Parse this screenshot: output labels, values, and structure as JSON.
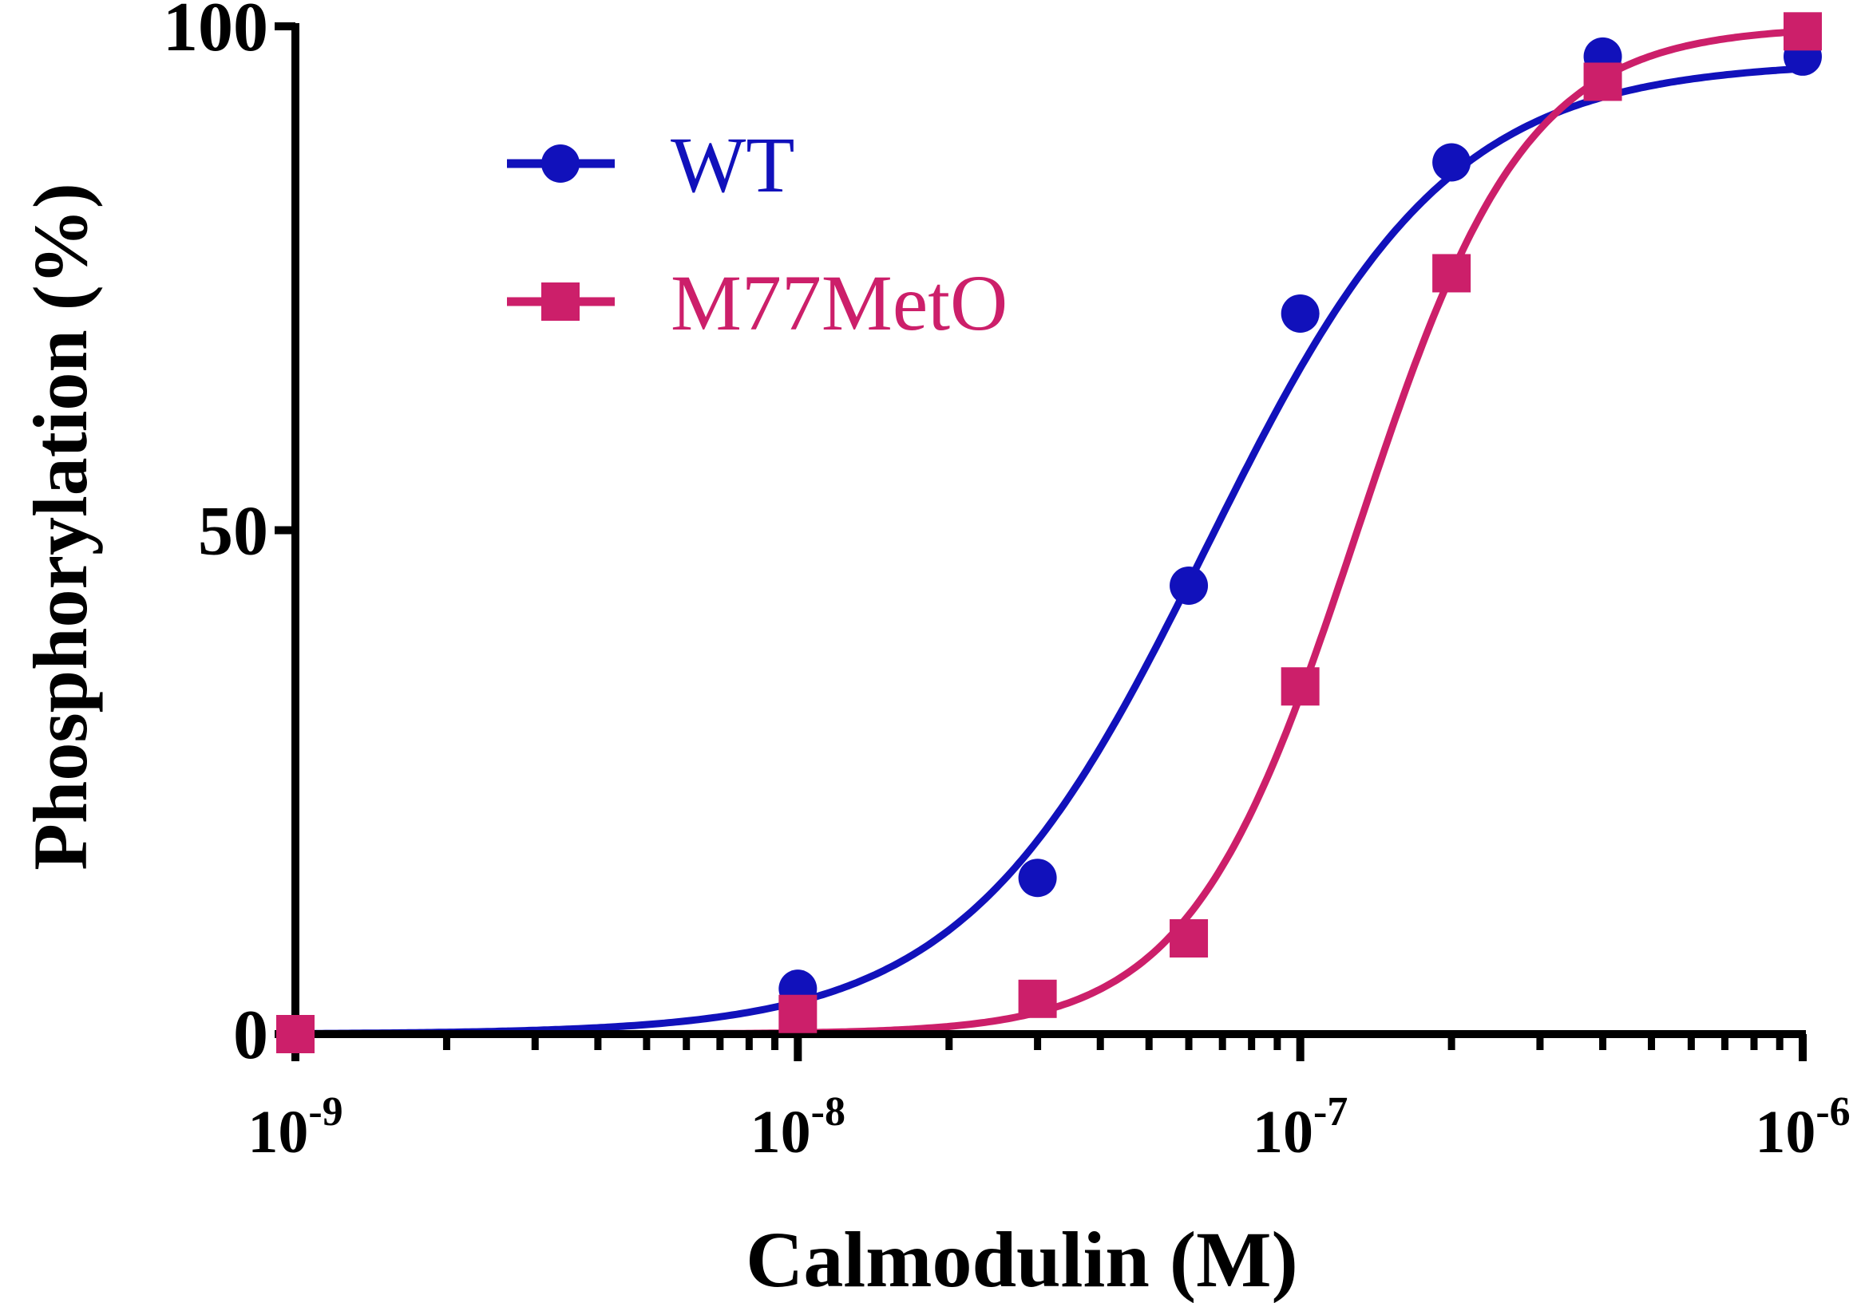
{
  "chart_data": {
    "type": "scatter",
    "xlabel": "Calmodulin (M)",
    "ylabel": "Phosphorylation (%)",
    "xscale": "log",
    "xlim": [
      1e-09,
      1e-06
    ],
    "ylim": [
      0,
      100
    ],
    "x_ticks": [
      {
        "value": 1e-09,
        "base": "10",
        "exp": "-9"
      },
      {
        "value": 1e-08,
        "base": "10",
        "exp": "-8"
      },
      {
        "value": 1e-07,
        "base": "10",
        "exp": "-7"
      },
      {
        "value": 1e-06,
        "base": "10",
        "exp": "-6"
      }
    ],
    "y_ticks": [
      {
        "value": 0,
        "label": "0"
      },
      {
        "value": 50,
        "label": "50"
      },
      {
        "value": 100,
        "label": "100"
      }
    ],
    "legend_position": "top-left",
    "grid": false,
    "series": [
      {
        "name": "WT",
        "color": "#1111bb",
        "marker": "circle",
        "x": [
          1e-09,
          1e-08,
          3e-08,
          6e-08,
          1e-07,
          2e-07,
          4e-07,
          1e-06
        ],
        "y": [
          0,
          4.5,
          15.5,
          44.5,
          71.5,
          86.5,
          97,
          97
        ],
        "fit": {
          "model": "sigmoidal dose-response",
          "bottom": 0,
          "top": 96.5,
          "ec50": 6.5e-08,
          "hill": 1.8
        }
      },
      {
        "name": "M77MetO",
        "color": "#cc1f6a",
        "marker": "square",
        "x": [
          1e-09,
          1e-08,
          3e-08,
          6e-08,
          1e-07,
          2e-07,
          4e-07,
          1e-06
        ],
        "y": [
          0,
          2,
          3.5,
          9.5,
          34.5,
          75.5,
          94.5,
          99.5
        ],
        "fit": {
          "model": "sigmoidal dose-response",
          "bottom": 0,
          "top": 100,
          "ec50": 1.3e-07,
          "hill": 2.6
        }
      }
    ]
  }
}
